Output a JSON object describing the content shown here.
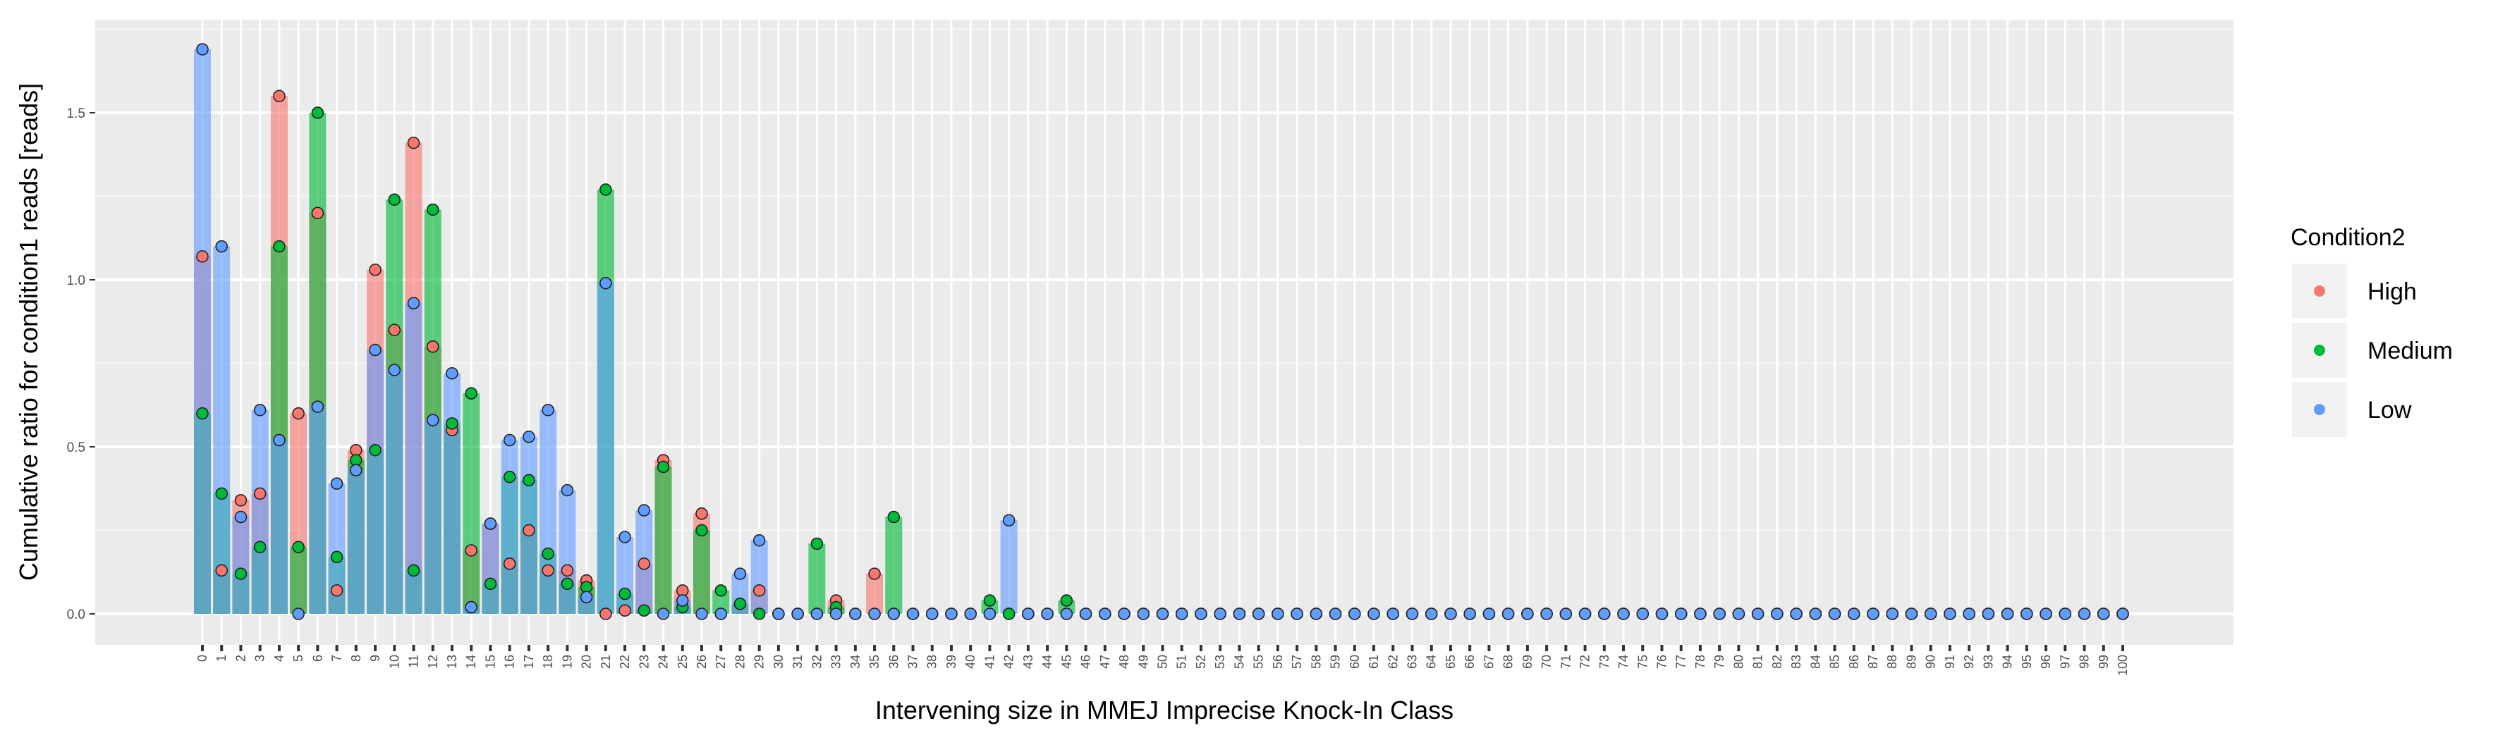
{
  "chart_data": {
    "type": "bar",
    "title": "",
    "xlabel": "Intervening size in MMEJ Imprecise Knock-In Class",
    "ylabel": "Cumulative ratio for condition1 reads [reads]",
    "ylim": [
      -0.08,
      1.77
    ],
    "yticks": [
      0.0,
      0.5,
      1.0,
      1.5
    ],
    "ytick_labels": [
      "0.0",
      "0.5",
      "1.0",
      "1.5"
    ],
    "grid": true,
    "legend_title": "Condition2",
    "legend_position": "right",
    "categories": [
      "0",
      "1",
      "2",
      "3",
      "4",
      "5",
      "6",
      "7",
      "8",
      "9",
      "10",
      "11",
      "12",
      "13",
      "14",
      "15",
      "16",
      "17",
      "18",
      "19",
      "20",
      "21",
      "22",
      "23",
      "24",
      "25",
      "26",
      "27",
      "28",
      "29",
      "30",
      "31",
      "32",
      "33",
      "34",
      "35",
      "36",
      "37",
      "38",
      "39",
      "40",
      "41",
      "42",
      "43",
      "44",
      "45",
      "46",
      "47",
      "48",
      "49",
      "50",
      "51",
      "52",
      "53",
      "54",
      "55",
      "56",
      "57",
      "58",
      "59",
      "60",
      "61",
      "62",
      "63",
      "64",
      "65",
      "66",
      "67",
      "68",
      "69",
      "70",
      "71",
      "72",
      "73",
      "74",
      "75",
      "76",
      "77",
      "78",
      "79",
      "80",
      "81",
      "82",
      "83",
      "84",
      "85",
      "86",
      "87",
      "88",
      "89",
      "90",
      "91",
      "92",
      "93",
      "94",
      "95",
      "96",
      "97",
      "98",
      "99",
      "100"
    ],
    "series": [
      {
        "name": "High",
        "color": "#F8766D",
        "values": [
          1.07,
          0.13,
          0.34,
          0.36,
          1.55,
          0.6,
          1.2,
          0.07,
          0.49,
          1.03,
          0.85,
          1.41,
          0.8,
          0.55,
          0.19,
          0.27,
          0.15,
          0.25,
          0.13,
          0.13,
          0.1,
          0.0,
          0.01,
          0.15,
          0.46,
          0.07,
          0.3,
          0.0,
          0.03,
          0.07,
          0,
          0,
          0,
          0.04,
          0,
          0.12,
          0,
          0,
          0,
          0,
          0,
          0,
          0,
          0,
          0,
          0,
          0,
          0,
          0,
          0,
          0,
          0,
          0,
          0,
          0,
          0,
          0,
          0,
          0,
          0,
          0,
          0,
          0,
          0,
          0,
          0,
          0,
          0,
          0,
          0,
          0,
          0,
          0,
          0,
          0,
          0,
          0,
          0,
          0,
          0,
          0,
          0,
          0,
          0,
          0,
          0,
          0,
          0,
          0,
          0,
          0,
          0,
          0,
          0,
          0,
          0,
          0,
          0,
          0,
          0,
          0
        ]
      },
      {
        "name": "Medium",
        "color": "#00BA38",
        "values": [
          0.6,
          0.36,
          0.12,
          0.2,
          1.1,
          0.2,
          1.5,
          0.17,
          0.46,
          0.49,
          1.24,
          0.13,
          1.21,
          0.57,
          0.66,
          0.09,
          0.41,
          0.4,
          0.18,
          0.09,
          0.08,
          1.27,
          0.06,
          0.01,
          0.44,
          0.02,
          0.25,
          0.07,
          0.03,
          0.0,
          0,
          0,
          0.21,
          0.02,
          0,
          0,
          0.29,
          0,
          0,
          0,
          0,
          0.04,
          0.0,
          0,
          0,
          0.04,
          0,
          0,
          0,
          0,
          0,
          0,
          0,
          0,
          0,
          0,
          0,
          0,
          0,
          0,
          0,
          0,
          0,
          0,
          0,
          0,
          0,
          0,
          0,
          0,
          0,
          0,
          0,
          0,
          0,
          0,
          0,
          0,
          0,
          0,
          0,
          0,
          0,
          0,
          0,
          0,
          0,
          0,
          0,
          0,
          0,
          0,
          0,
          0,
          0,
          0,
          0,
          0,
          0,
          0,
          0
        ]
      },
      {
        "name": "Low",
        "color": "#619CFF",
        "values": [
          1.69,
          1.1,
          0.29,
          0.61,
          0.52,
          0.0,
          0.62,
          0.39,
          0.43,
          0.79,
          0.73,
          0.93,
          0.58,
          0.72,
          0.02,
          0.27,
          0.52,
          0.53,
          0.61,
          0.37,
          0.05,
          0.99,
          0.23,
          0.31,
          0.0,
          0.04,
          0.0,
          0.0,
          0.12,
          0.22,
          0,
          0,
          0,
          0,
          0,
          0,
          0,
          0,
          0,
          0,
          0,
          0,
          0.28,
          0,
          0,
          0,
          0,
          0,
          0,
          0,
          0,
          0,
          0,
          0,
          0,
          0,
          0,
          0,
          0,
          0,
          0,
          0,
          0,
          0,
          0,
          0,
          0,
          0,
          0,
          0,
          0,
          0,
          0,
          0,
          0,
          0,
          0,
          0,
          0,
          0,
          0,
          0,
          0,
          0,
          0,
          0,
          0,
          0,
          0,
          0,
          0,
          0,
          0,
          0,
          0,
          0,
          0,
          0,
          0,
          0,
          0
        ]
      }
    ]
  }
}
